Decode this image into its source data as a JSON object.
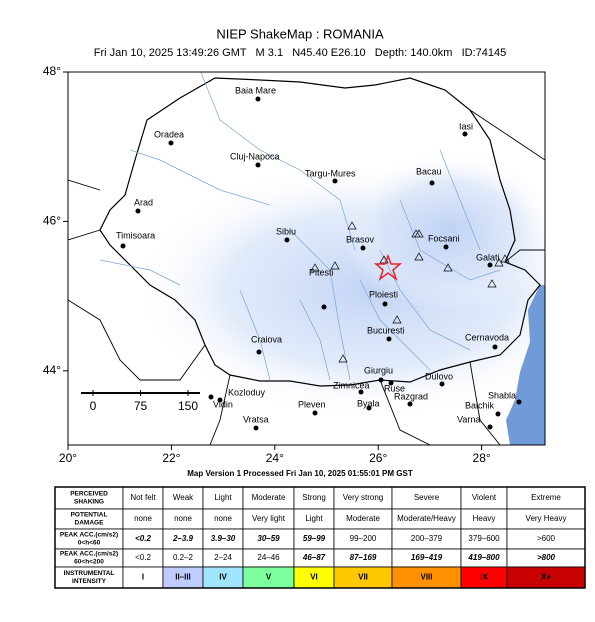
{
  "header": {
    "title": "NIEP ShakeMap : ROMANIA",
    "subtitle": "Fri Jan 10, 2025 13:49:26 GMT   M 3.1   N45.40 E26.10   Depth: 140.0km   ID:74145"
  },
  "map": {
    "lat_ticks": [
      {
        "value": 48,
        "label": "48°"
      },
      {
        "value": 46,
        "label": "46°"
      },
      {
        "value": 44,
        "label": "44°"
      }
    ],
    "lon_ticks": [
      {
        "value": 20,
        "label": "20°"
      },
      {
        "value": 22,
        "label": "22°"
      },
      {
        "value": 24,
        "label": "24°"
      },
      {
        "value": 26,
        "label": "26°"
      },
      {
        "value": 28,
        "label": "28°"
      }
    ],
    "scale_km": [
      0,
      75,
      150
    ],
    "cities": [
      "Baia Mare",
      "Oradea",
      "Iasi",
      "Cluj-Napoca",
      "Targu-Mures",
      "Bacau",
      "Arad",
      "Sibiu",
      "Brasov",
      "Focsani",
      "Timisoara",
      "Galati",
      "Ploiesti",
      "Pitesti",
      "Bucuresti",
      "Cernavoda",
      "Craiova",
      "Giurgiu",
      "Zimnicea",
      "Ruse",
      "Dulovo",
      "Kozloduy",
      "Vidin",
      "Shabla",
      "Razgrad",
      "Balchik",
      "Pleven",
      "Byala",
      "Vratsa",
      "Varna"
    ]
  },
  "footer": "Map Version 1 Processed Fri Jan 10, 2025 01:55:01 PM GST",
  "table": {
    "rows": [
      {
        "label": [
          "PERCEIVED",
          "SHAKING"
        ],
        "cells": [
          "Not felt",
          "Weak",
          "Light",
          "Moderate",
          "Strong",
          "Very strong",
          "Severe",
          "Violent",
          "Extreme"
        ]
      },
      {
        "label": [
          "POTENTIAL",
          "DAMAGE"
        ],
        "cells": [
          "none",
          "none",
          "none",
          "Very light",
          "Light",
          "Moderate",
          "Moderate/Heavy",
          "Heavy",
          "Very Heavy"
        ]
      },
      {
        "label": [
          "PEAK ACC.(cm/s2)",
          "0<h<60"
        ],
        "cells": [
          "<0.2",
          "2–3.9",
          "3.9–30",
          "30–59",
          "59–99",
          "99–200",
          "200–379",
          "379–600",
          ">600"
        ]
      },
      {
        "label": [
          "PEAK ACC.(cm/s2)",
          "60<h<200"
        ],
        "cells": [
          "<0.2",
          "0.2–2",
          "2–24",
          "24–46",
          "46–87",
          "87–169",
          "169–419",
          "419–800",
          ">800"
        ]
      },
      {
        "label": [
          "INSTRUMENTAL",
          "INTENSITY"
        ],
        "cells": [
          "I",
          "II–III",
          "IV",
          "V",
          "VI",
          "VII",
          "VIII",
          "IX",
          "X+"
        ]
      }
    ],
    "intensity_colors": [
      "#ffffff",
      "#bfccff",
      "#a0e6ff",
      "#7cff9c",
      "#ffff00",
      "#ffc800",
      "#ff9100",
      "#ff0000",
      "#c80000"
    ]
  }
}
